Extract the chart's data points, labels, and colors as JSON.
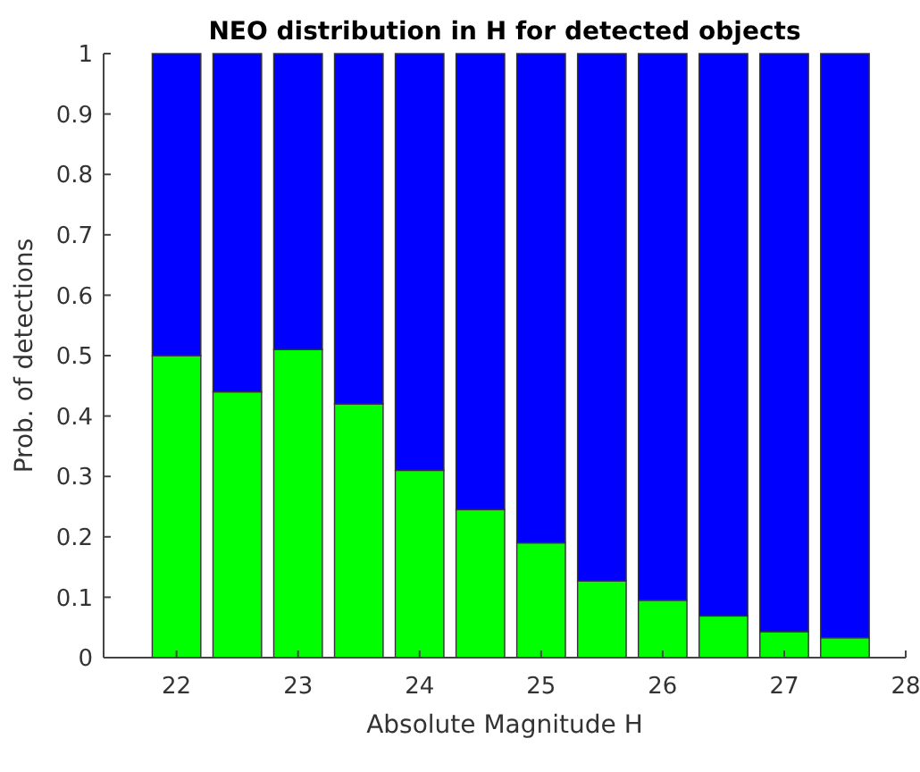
{
  "chart_data": {
    "type": "bar",
    "stacked": true,
    "title": "NEO distribution in H for detected objects",
    "xlabel": "Absolute Magnitude H",
    "ylabel": "Prob. of detections",
    "x": [
      22,
      22.5,
      23,
      23.5,
      24,
      24.5,
      25,
      25.5,
      26,
      26.5,
      27,
      27.5
    ],
    "series": [
      {
        "color": "#00ff00",
        "values": [
          0.5,
          0.44,
          0.51,
          0.42,
          0.31,
          0.245,
          0.19,
          0.127,
          0.095,
          0.069,
          0.043,
          0.033
        ]
      },
      {
        "color": "#0000ff",
        "values": [
          0.5,
          0.56,
          0.49,
          0.58,
          0.69,
          0.755,
          0.81,
          0.873,
          0.905,
          0.931,
          0.957,
          0.967
        ]
      }
    ],
    "xlim": [
      21.4,
      28
    ],
    "xticks": [
      22,
      23,
      24,
      25,
      26,
      27,
      28
    ],
    "ylim": [
      0,
      1
    ],
    "yticks": [
      0,
      0.1,
      0.2,
      0.3,
      0.4,
      0.5,
      0.6,
      0.7,
      0.8,
      0.9,
      1
    ]
  }
}
